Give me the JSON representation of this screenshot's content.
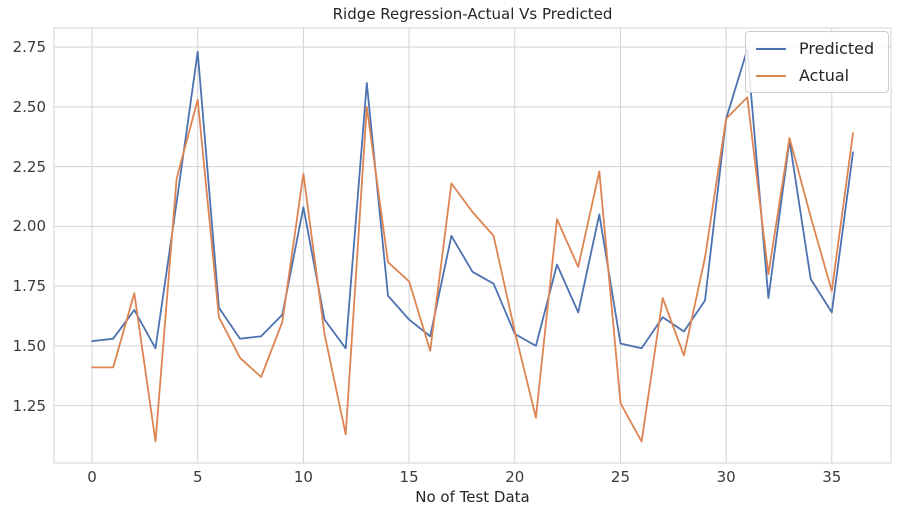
{
  "chart_data": {
    "type": "line",
    "title": "Ridge Regression-Actual Vs Predicted",
    "xlabel": "No of Test Data",
    "ylabel": "",
    "x": [
      0,
      1,
      2,
      3,
      4,
      5,
      6,
      7,
      8,
      9,
      10,
      11,
      12,
      13,
      14,
      15,
      16,
      17,
      18,
      19,
      20,
      21,
      22,
      23,
      24,
      25,
      26,
      27,
      28,
      29,
      30,
      31,
      32,
      33,
      34,
      35,
      36
    ],
    "series": [
      {
        "name": "Predicted",
        "color": "#4C72B0",
        "values": [
          1.52,
          1.53,
          1.65,
          1.49,
          2.1,
          2.73,
          1.66,
          1.53,
          1.54,
          1.63,
          2.08,
          1.61,
          1.49,
          2.6,
          1.71,
          1.61,
          1.54,
          1.96,
          1.81,
          1.76,
          1.55,
          1.5,
          1.84,
          1.64,
          2.05,
          1.51,
          1.49,
          1.62,
          1.56,
          1.69,
          2.45,
          2.74,
          1.7,
          2.36,
          1.78,
          1.64,
          2.31
        ]
      },
      {
        "name": "Actual",
        "color": "#DD8452",
        "values": [
          1.41,
          1.41,
          1.72,
          1.1,
          2.2,
          2.53,
          1.62,
          1.45,
          1.37,
          1.6,
          2.22,
          1.55,
          1.13,
          2.5,
          1.85,
          1.77,
          1.48,
          2.18,
          2.06,
          1.96,
          1.56,
          1.2,
          2.03,
          1.83,
          2.23,
          1.26,
          1.1,
          1.7,
          1.46,
          1.87,
          2.45,
          2.54,
          1.8,
          2.37,
          2.04,
          1.73,
          2.39
        ]
      }
    ],
    "xticks": [
      "0",
      "5",
      "10",
      "15",
      "20",
      "25",
      "30",
      "35"
    ],
    "xtick_values": [
      0,
      5,
      10,
      15,
      20,
      25,
      30,
      35
    ],
    "yticks": [
      "1.25",
      "1.50",
      "1.75",
      "2.00",
      "2.25",
      "2.50",
      "2.75"
    ],
    "ytick_values": [
      1.25,
      1.5,
      1.75,
      2.0,
      2.25,
      2.5,
      2.75
    ],
    "xlim": [
      -1.8,
      37.8
    ],
    "ylim": [
      1.01,
      2.83
    ],
    "grid": true,
    "grid_color": "#d3d3d3",
    "legend_position": "upper right"
  }
}
